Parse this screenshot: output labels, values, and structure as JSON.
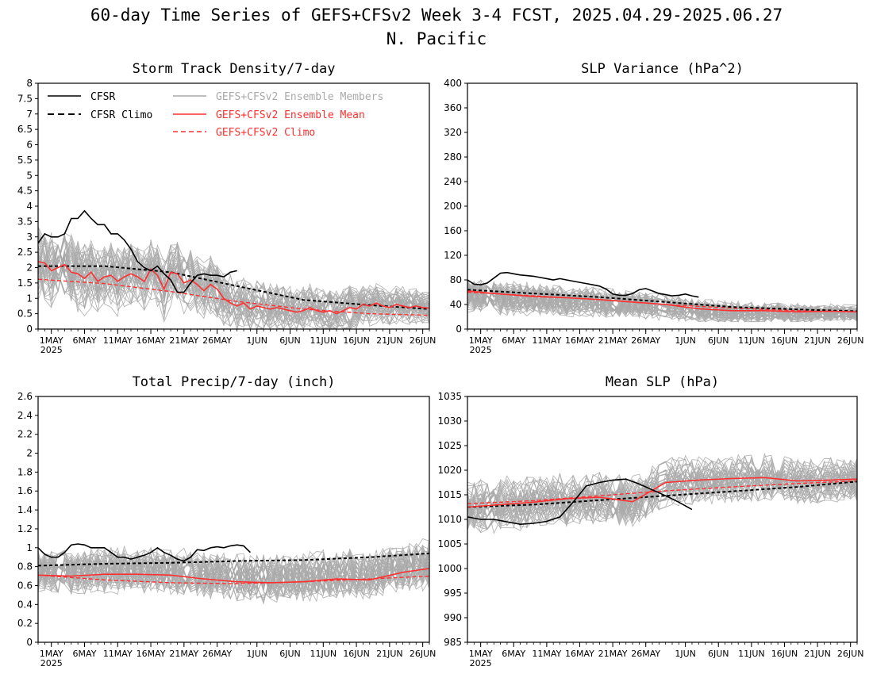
{
  "figure": {
    "title_line1": "60-day Time Series of GEFS+CFSv2 Week 3-4 FCST, 2025.04.29-2025.06.27",
    "title_line2": "N. Pacific"
  },
  "colors": {
    "cfsr": "#000000",
    "cfsr_climo": "#000000",
    "members": "#a9a9a9",
    "ens_mean": "#ff3030",
    "ens_climo": "#ff3030"
  },
  "legend": {
    "cfsr": "CFSR",
    "cfsr_climo": "CFSR Climo",
    "members": "GEFS+CFSv2 Ensemble Members",
    "ens_mean": "GEFS+CFSv2 Ensemble Mean",
    "ens_climo": "GEFS+CFSv2 Climo"
  },
  "x_axis": {
    "start_date": "2025-04-29",
    "days": 60,
    "tick_labels": [
      "1MAY",
      "6MAY",
      "11MAY",
      "16MAY",
      "21MAY",
      "26MAY",
      "1JUN",
      "6JUN",
      "11JUN",
      "16JUN",
      "21JUN",
      "26JUN"
    ],
    "tick_dates": [
      "2025-05-01",
      "2025-05-06",
      "2025-05-11",
      "2025-05-16",
      "2025-05-21",
      "2025-05-26",
      "2025-06-01",
      "2025-06-06",
      "2025-06-11",
      "2025-06-16",
      "2025-06-21",
      "2025-06-26"
    ],
    "year_label": "2025"
  },
  "chart_data": [
    {
      "type": "line",
      "title": "Storm Track Density/7-day",
      "ylim": [
        0,
        8
      ],
      "yticks": [
        "0",
        "0.5",
        "1",
        "1.5",
        "2",
        "2.5",
        "3",
        "3.5",
        "4",
        "4.5",
        "5",
        "5.5",
        "6",
        "6.5",
        "7",
        "7.5",
        "8"
      ],
      "legend": true,
      "members": {
        "count": 40,
        "spread_start": 0.8,
        "spread_end": 0.35,
        "max": 4.7,
        "min": 0
      },
      "series": [
        {
          "key": "cfsr",
          "name": "CFSR",
          "x": [
            "2025-04-29",
            "2025-04-30",
            "2025-05-01",
            "2025-05-02",
            "2025-05-03",
            "2025-05-04",
            "2025-05-05",
            "2025-05-06",
            "2025-05-07",
            "2025-05-08",
            "2025-05-09",
            "2025-05-10",
            "2025-05-11",
            "2025-05-12",
            "2025-05-13",
            "2025-05-14",
            "2025-05-15",
            "2025-05-16",
            "2025-05-17",
            "2025-05-18",
            "2025-05-19",
            "2025-05-20",
            "2025-05-21",
            "2025-05-22",
            "2025-05-23",
            "2025-05-24",
            "2025-05-25",
            "2025-05-26",
            "2025-05-27",
            "2025-05-28",
            "2025-05-29"
          ],
          "y": [
            2.8,
            3.1,
            3.0,
            3.0,
            3.1,
            3.6,
            3.6,
            3.85,
            3.6,
            3.4,
            3.4,
            3.1,
            3.1,
            2.9,
            2.6,
            2.2,
            2.0,
            1.9,
            2.05,
            1.8,
            1.6,
            1.2,
            1.2,
            1.5,
            1.75,
            1.8,
            1.75,
            1.75,
            1.7,
            1.85,
            1.9
          ]
        },
        {
          "key": "cfsr_climo",
          "name": "CFSR Climo",
          "x": [
            "2025-04-29",
            "2025-05-09",
            "2025-05-19",
            "2025-05-29",
            "2025-06-08",
            "2025-06-18",
            "2025-06-27"
          ],
          "y": [
            2.05,
            2.05,
            1.85,
            1.4,
            0.95,
            0.78,
            0.65
          ]
        },
        {
          "key": "ens_mean",
          "name": "GEFS+CFSv2 Ensemble Mean",
          "x": [
            "2025-04-29",
            "2025-04-30",
            "2025-05-01",
            "2025-05-02",
            "2025-05-03",
            "2025-05-04",
            "2025-05-05",
            "2025-05-06",
            "2025-05-07",
            "2025-05-08",
            "2025-05-09",
            "2025-05-10",
            "2025-05-11",
            "2025-05-12",
            "2025-05-13",
            "2025-05-14",
            "2025-05-15",
            "2025-05-16",
            "2025-05-17",
            "2025-05-18",
            "2025-05-19",
            "2025-05-20",
            "2025-05-21",
            "2025-05-22",
            "2025-05-23",
            "2025-05-24",
            "2025-05-25",
            "2025-05-26",
            "2025-05-27",
            "2025-05-28",
            "2025-05-29",
            "2025-05-30",
            "2025-05-31",
            "2025-06-01",
            "2025-06-02",
            "2025-06-03",
            "2025-06-04",
            "2025-06-05",
            "2025-06-06",
            "2025-06-07",
            "2025-06-08",
            "2025-06-09",
            "2025-06-10",
            "2025-06-11",
            "2025-06-12",
            "2025-06-13",
            "2025-06-14",
            "2025-06-15",
            "2025-06-16",
            "2025-06-17",
            "2025-06-18",
            "2025-06-19",
            "2025-06-20",
            "2025-06-21",
            "2025-06-22",
            "2025-06-23",
            "2025-06-24",
            "2025-06-25",
            "2025-06-26",
            "2025-06-27"
          ],
          "y": [
            2.2,
            2.15,
            1.9,
            2.0,
            2.1,
            1.85,
            1.8,
            1.65,
            1.85,
            1.55,
            1.7,
            1.75,
            1.55,
            1.7,
            1.8,
            1.7,
            1.55,
            1.95,
            1.75,
            1.3,
            1.85,
            1.8,
            1.5,
            1.6,
            1.45,
            1.25,
            1.45,
            1.3,
            1.0,
            0.85,
            0.75,
            0.85,
            0.65,
            0.75,
            0.7,
            0.65,
            0.7,
            0.65,
            0.6,
            0.55,
            0.6,
            0.7,
            0.6,
            0.55,
            0.6,
            0.5,
            0.6,
            0.7,
            0.65,
            0.8,
            0.75,
            0.85,
            0.75,
            0.7,
            0.8,
            0.75,
            0.7,
            0.75,
            0.7,
            0.68
          ]
        },
        {
          "key": "ens_climo",
          "name": "GEFS+CFSv2 Climo",
          "x": [
            "2025-04-29",
            "2025-05-09",
            "2025-05-19",
            "2025-05-29",
            "2025-06-08",
            "2025-06-18",
            "2025-06-27"
          ],
          "y": [
            1.62,
            1.48,
            1.22,
            0.9,
            0.65,
            0.5,
            0.45
          ]
        }
      ]
    },
    {
      "type": "line",
      "title": "SLP Variance (hPa^2)",
      "ylim": [
        0,
        400
      ],
      "yticks": [
        "0",
        "40",
        "80",
        "120",
        "160",
        "200",
        "240",
        "280",
        "320",
        "360",
        "400"
      ],
      "legend": false,
      "members": {
        "count": 40,
        "spread_start": 22,
        "spread_end": 10,
        "max": 130,
        "min": 12
      },
      "series": [
        {
          "key": "cfsr",
          "name": "CFSR",
          "x": [
            "2025-04-29",
            "2025-04-30",
            "2025-05-01",
            "2025-05-02",
            "2025-05-03",
            "2025-05-04",
            "2025-05-05",
            "2025-05-06",
            "2025-05-07",
            "2025-05-08",
            "2025-05-09",
            "2025-05-10",
            "2025-05-11",
            "2025-05-12",
            "2025-05-13",
            "2025-05-14",
            "2025-05-15",
            "2025-05-16",
            "2025-05-17",
            "2025-05-18",
            "2025-05-19",
            "2025-05-20",
            "2025-05-21",
            "2025-05-22",
            "2025-05-23",
            "2025-05-24",
            "2025-05-25",
            "2025-05-26",
            "2025-05-27",
            "2025-05-28",
            "2025-05-29",
            "2025-05-30",
            "2025-05-31",
            "2025-06-01",
            "2025-06-02",
            "2025-06-03"
          ],
          "y": [
            80,
            73,
            72,
            75,
            83,
            91,
            92,
            90,
            88,
            87,
            86,
            84,
            82,
            80,
            82,
            80,
            78,
            76,
            74,
            72,
            70,
            65,
            57,
            55,
            55,
            58,
            64,
            66,
            62,
            58,
            56,
            54,
            55,
            57,
            54,
            52
          ]
        },
        {
          "key": "cfsr_climo",
          "name": "CFSR Climo",
          "x": [
            "2025-04-29",
            "2025-05-09",
            "2025-05-19",
            "2025-05-29",
            "2025-06-08",
            "2025-06-18",
            "2025-06-27"
          ],
          "y": [
            64,
            58,
            52,
            44,
            36,
            32,
            29
          ]
        },
        {
          "key": "ens_mean",
          "name": "GEFS+CFSv2 Ensemble Mean",
          "x": [
            "2025-04-29",
            "2025-05-04",
            "2025-05-09",
            "2025-05-14",
            "2025-05-19",
            "2025-05-24",
            "2025-05-29",
            "2025-06-03",
            "2025-06-08",
            "2025-06-13",
            "2025-06-18",
            "2025-06-23",
            "2025-06-27"
          ],
          "y": [
            62,
            57,
            53,
            51,
            48,
            44,
            40,
            33,
            30,
            30,
            28,
            29,
            28
          ]
        },
        {
          "key": "ens_climo",
          "name": "GEFS+CFSv2 Climo",
          "x": [
            "2025-04-29",
            "2025-05-09",
            "2025-05-19",
            "2025-05-29",
            "2025-06-08",
            "2025-06-18",
            "2025-06-27"
          ],
          "y": [
            60,
            54,
            48,
            40,
            34,
            30,
            28
          ]
        }
      ]
    },
    {
      "type": "line",
      "title": "Total Precip/7-day (inch)",
      "ylim": [
        0,
        2.6
      ],
      "yticks": [
        "0",
        "0.2",
        "0.4",
        "0.6",
        "0.8",
        "1",
        "1.2",
        "1.4",
        "1.6",
        "1.8",
        "2",
        "2.2",
        "2.4",
        "2.6"
      ],
      "legend": false,
      "members": {
        "count": 40,
        "spread_start": 0.18,
        "spread_end": 0.2,
        "max": 1.25,
        "min": 0.2
      },
      "series": [
        {
          "key": "cfsr",
          "name": "CFSR",
          "x": [
            "2025-04-29",
            "2025-04-30",
            "2025-05-01",
            "2025-05-02",
            "2025-05-03",
            "2025-05-04",
            "2025-05-05",
            "2025-05-06",
            "2025-05-07",
            "2025-05-08",
            "2025-05-09",
            "2025-05-10",
            "2025-05-11",
            "2025-05-12",
            "2025-05-13",
            "2025-05-14",
            "2025-05-15",
            "2025-05-16",
            "2025-05-17",
            "2025-05-18",
            "2025-05-19",
            "2025-05-20",
            "2025-05-21",
            "2025-05-22",
            "2025-05-23",
            "2025-05-24",
            "2025-05-25",
            "2025-05-26",
            "2025-05-27",
            "2025-05-28",
            "2025-05-29",
            "2025-05-30",
            "2025-05-31"
          ],
          "y": [
            1.0,
            0.93,
            0.9,
            0.9,
            0.95,
            1.03,
            1.04,
            1.03,
            1.0,
            1.0,
            1.0,
            0.95,
            0.9,
            0.9,
            0.88,
            0.9,
            0.92,
            0.95,
            1.0,
            0.95,
            0.92,
            0.88,
            0.86,
            0.9,
            0.98,
            0.97,
            1.0,
            1.01,
            1.0,
            1.02,
            1.03,
            1.02,
            0.95
          ]
        },
        {
          "key": "cfsr_climo",
          "name": "CFSR Climo",
          "x": [
            "2025-04-29",
            "2025-05-09",
            "2025-05-19",
            "2025-05-29",
            "2025-06-08",
            "2025-06-18",
            "2025-06-27"
          ],
          "y": [
            0.81,
            0.83,
            0.84,
            0.86,
            0.87,
            0.9,
            0.94
          ]
        },
        {
          "key": "ens_mean",
          "name": "GEFS+CFSv2 Ensemble Mean",
          "x": [
            "2025-04-29",
            "2025-05-04",
            "2025-05-09",
            "2025-05-14",
            "2025-05-19",
            "2025-05-24",
            "2025-05-29",
            "2025-06-03",
            "2025-06-08",
            "2025-06-13",
            "2025-06-18",
            "2025-06-23",
            "2025-06-27"
          ],
          "y": [
            0.71,
            0.7,
            0.72,
            0.72,
            0.71,
            0.67,
            0.64,
            0.63,
            0.64,
            0.67,
            0.66,
            0.74,
            0.78
          ]
        },
        {
          "key": "ens_climo",
          "name": "GEFS+CFSv2 Climo",
          "x": [
            "2025-04-29",
            "2025-05-09",
            "2025-05-19",
            "2025-05-29",
            "2025-06-08",
            "2025-06-18",
            "2025-06-27"
          ],
          "y": [
            0.71,
            0.66,
            0.63,
            0.62,
            0.64,
            0.67,
            0.7
          ]
        }
      ]
    },
    {
      "type": "line",
      "title": "Mean SLP (hPa)",
      "ylim": [
        985,
        1035
      ],
      "yticks": [
        "985",
        "990",
        "995",
        "1000",
        "1005",
        "1010",
        "1015",
        "1020",
        "1025",
        "1030",
        "1035"
      ],
      "legend": false,
      "members": {
        "count": 40,
        "spread_start": 3.5,
        "spread_end": 2.8,
        "max": 1027,
        "min": 1000
      },
      "series": [
        {
          "key": "cfsr",
          "name": "CFSR",
          "x": [
            "2025-04-29",
            "2025-05-01",
            "2025-05-03",
            "2025-05-05",
            "2025-05-07",
            "2025-05-09",
            "2025-05-11",
            "2025-05-13",
            "2025-05-15",
            "2025-05-17",
            "2025-05-19",
            "2025-05-21",
            "2025-05-23",
            "2025-05-25",
            "2025-05-27",
            "2025-05-29",
            "2025-05-31",
            "2025-06-02"
          ],
          "y": [
            1010.5,
            1010.0,
            1010.0,
            1009.5,
            1009.0,
            1009.2,
            1009.6,
            1010.5,
            1013.5,
            1016.8,
            1017.5,
            1018.0,
            1018.2,
            1017.2,
            1016.0,
            1014.8,
            1013.5,
            1012.0
          ]
        },
        {
          "key": "cfsr_climo",
          "name": "CFSR Climo",
          "x": [
            "2025-04-29",
            "2025-05-09",
            "2025-05-19",
            "2025-05-29",
            "2025-06-08",
            "2025-06-18",
            "2025-06-27"
          ],
          "y": [
            1012.5,
            1013.0,
            1013.9,
            1014.8,
            1015.7,
            1016.6,
            1017.7
          ]
        },
        {
          "key": "ens_mean",
          "name": "GEFS+CFSv2 Ensemble Mean",
          "x": [
            "2025-04-29",
            "2025-05-04",
            "2025-05-09",
            "2025-05-14",
            "2025-05-19",
            "2025-05-24",
            "2025-05-29",
            "2025-06-03",
            "2025-06-08",
            "2025-06-13",
            "2025-06-18",
            "2025-06-23",
            "2025-06-27"
          ],
          "y": [
            1012.5,
            1013.0,
            1013.5,
            1014.2,
            1014.5,
            1013.6,
            1017.5,
            1018.0,
            1018.3,
            1018.5,
            1017.8,
            1018.0,
            1018.2
          ]
        },
        {
          "key": "ens_climo",
          "name": "GEFS+CFSv2 Climo",
          "x": [
            "2025-04-29",
            "2025-05-09",
            "2025-05-19",
            "2025-05-29",
            "2025-06-08",
            "2025-06-18",
            "2025-06-27"
          ],
          "y": [
            1013.2,
            1013.8,
            1014.8,
            1015.8,
            1016.6,
            1017.3,
            1017.8
          ]
        }
      ]
    }
  ]
}
